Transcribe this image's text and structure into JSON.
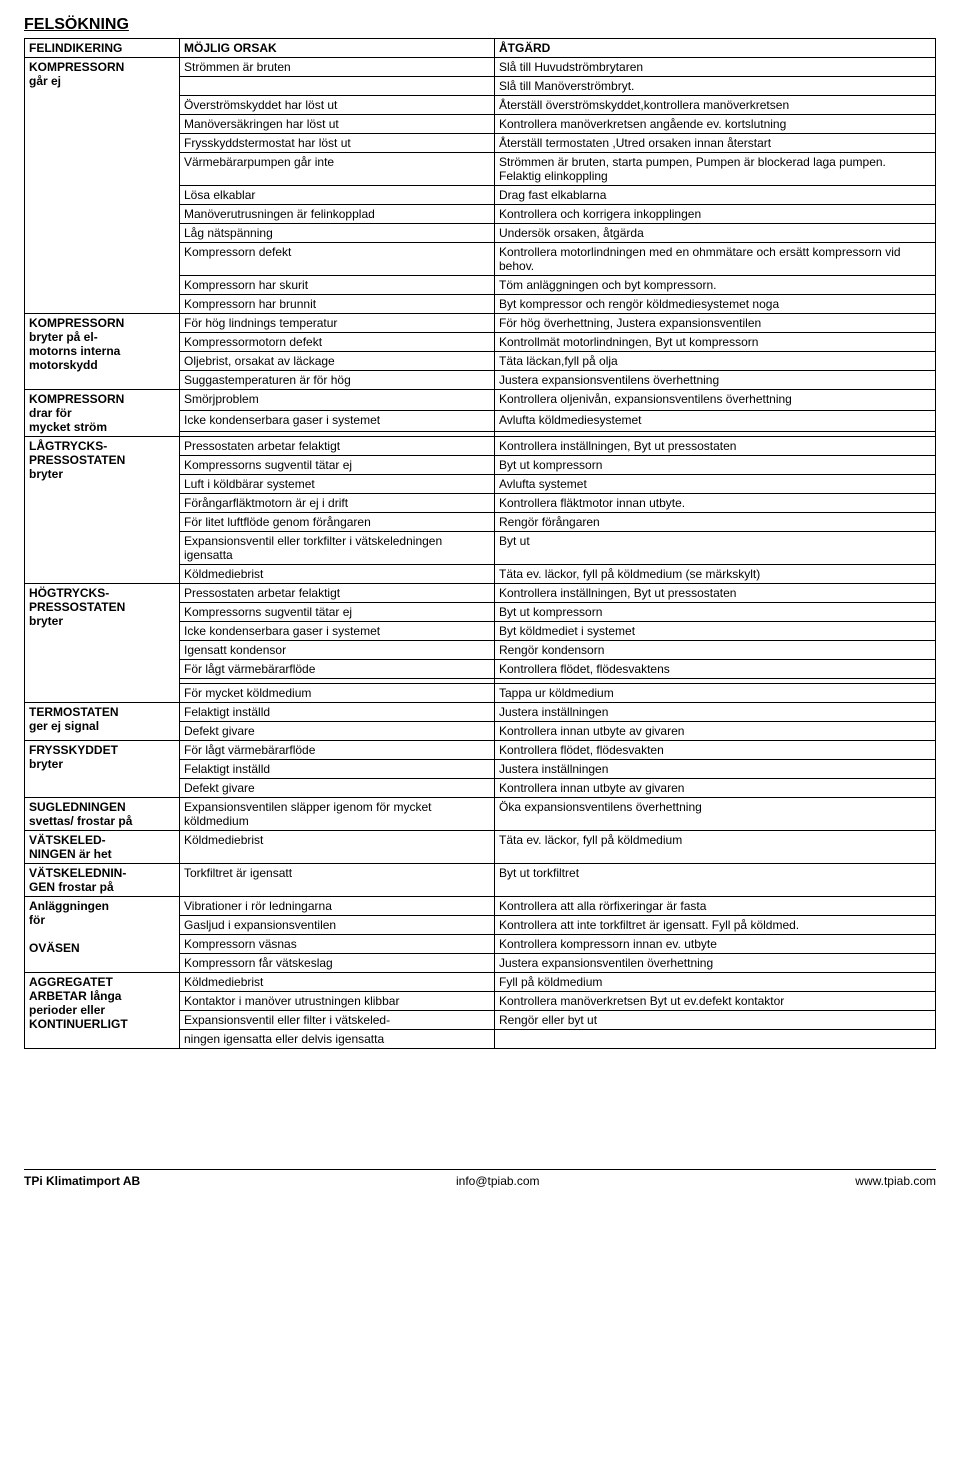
{
  "title": "FELSÖKNING",
  "header": {
    "col1": "FELINDIKERING",
    "col2": "MÖJLIG ORSAK",
    "col3": "ÅTGÄRD"
  },
  "groups": [
    {
      "label_parts": [
        "KOMPRESSORN",
        "går ej"
      ],
      "rows": [
        [
          "Strömmen är bruten",
          "Slå till Huvudströmbrytaren"
        ],
        [
          "",
          "Slå till Manöverströmbryt."
        ],
        [
          "Överströmskyddet har löst ut",
          "Återställ överströmskyddet,kontrollera manöverkretsen"
        ],
        [
          "Manöversäkringen har löst ut",
          "Kontrollera manöverkretsen angående ev. kortslutning"
        ],
        [
          "Frysskyddstermostat har löst ut",
          "Återställ termostaten ,Utred orsaken innan återstart"
        ],
        [
          "Värmebärarpumpen går inte",
          "Strömmen är bruten, starta pumpen, Pumpen är blockerad laga pumpen. Felaktig elinkoppling"
        ],
        [
          "Lösa elkablar",
          "Drag fast elkablarna"
        ],
        [
          "Manöverutrusningen är felinkopplad",
          "Kontrollera och korrigera inkopplingen"
        ],
        [
          "Låg nätspänning",
          "Undersök orsaken, åtgärda"
        ],
        [
          "Kompressorn defekt",
          "Kontrollera motorlindningen med en ohmmätare och ersätt kompressorn vid behov."
        ],
        [
          "Kompressorn har skurit",
          "Töm anläggningen och byt kompressorn."
        ],
        [
          "Kompressorn har brunnit",
          "Byt kompressor och rengör köldmediesystemet noga"
        ]
      ]
    },
    {
      "label_parts": [
        "KOMPRESSORN",
        "bryter på el-",
        "motorns interna",
        "motorskydd"
      ],
      "rows": [
        [
          "För hög lindnings temperatur",
          "För hög överhettning,  Justera expansionsventilen"
        ],
        [
          "Kompressormotorn defekt",
          "Kontrollmät motorlindningen, Byt ut kompressorn"
        ],
        [
          "Oljebrist, orsakat av läckage",
          "Täta läckan,fyll på olja"
        ],
        [
          "Suggastemperaturen är för hög",
          "Justera expansionsventilens överhettning"
        ]
      ]
    },
    {
      "label_parts": [
        "KOMPRESSORN",
        "drar för",
        "mycket ström"
      ],
      "rows": [
        [
          "Smörjproblem",
          "Kontrollera oljenivån, expansionsventilens överhettning"
        ],
        [
          "Icke kondenserbara gaser i systemet",
          "Avlufta köldmediesystemet"
        ],
        [
          "",
          ""
        ]
      ]
    },
    {
      "label_parts": [
        "LÅGTRYCKS-",
        "PRESSOSTATEN",
        "bryter"
      ],
      "rows": [
        [
          "Pressostaten arbetar felaktigt",
          "Kontrollera inställningen, Byt ut pressostaten"
        ],
        [
          "Kompressorns sugventil tätar ej",
          "Byt ut kompressorn"
        ],
        [
          "Luft i köldbärar systemet",
          "Avlufta systemet"
        ],
        [
          "Förångarfläktmotorn är ej i drift",
          "Kontrollera fläktmotor innan utbyte."
        ],
        [
          "För litet luftflöde genom förångaren",
          "Rengör förångaren"
        ],
        [
          "Expansionsventil eller torkfilter i vätskeledningen igensatta",
          "Byt ut"
        ],
        [
          "Köldmediebrist",
          "Täta ev. läckor, fyll på köldmedium (se märkskylt)"
        ]
      ]
    },
    {
      "label_parts": [
        "HÖGTRYCKS-",
        "PRESSOSTATEN",
        "bryter"
      ],
      "rows": [
        [
          "Pressostaten arbetar felaktigt",
          "Kontrollera inställningen, Byt ut pressostaten"
        ],
        [
          "Kompressorns sugventil tätar ej",
          "Byt ut kompressorn"
        ],
        [
          "Icke kondenserbara gaser i systemet",
          "Byt köldmediet i systemet"
        ],
        [
          "Igensatt kondensor",
          "Rengör kondensorn"
        ],
        [
          "För lågt värmebärarflöde",
          "Kontrollera flödet, flödesvaktens"
        ],
        [
          "",
          ""
        ],
        [
          "För mycket köldmedium",
          "Tappa ur köldmedium"
        ]
      ]
    },
    {
      "label_parts": [
        "TERMOSTATEN",
        "ger ej signal"
      ],
      "rows": [
        [
          "Felaktigt inställd",
          "Justera inställningen"
        ],
        [
          "Defekt givare",
          "Kontrollera innan utbyte av givaren"
        ]
      ]
    },
    {
      "label_parts": [
        "FRYSSKYDDET",
        "bryter"
      ],
      "rows": [
        [
          "För lågt värmebärarflöde",
          "Kontrollera flödet, flödesvakten"
        ],
        [
          "Felaktigt inställd",
          "Justera inställningen"
        ],
        [
          "Defekt givare",
          "Kontrollera innan utbyte av givaren"
        ]
      ]
    },
    {
      "label_parts": [
        "SUGLEDNINGEN",
        "svettas/ frostar på"
      ],
      "rows": [
        [
          "Expansionsventilen släpper igenom för mycket köldmedium",
          "Öka expansionsventilens överhettning"
        ]
      ]
    },
    {
      "label_parts": [
        "VÄTSKELED-",
        "NINGEN är het"
      ],
      "rows": [
        [
          "Köldmediebrist",
          "Täta ev. läckor, fyll på köldmedium"
        ]
      ]
    },
    {
      "label_parts": [
        "VÄTSKELEDNIN-",
        "GEN frostar på"
      ],
      "rows": [
        [
          "Torkfiltret är igensatt",
          "Byt ut torkfiltret"
        ]
      ]
    },
    {
      "label_parts": [
        "Anläggningen",
        "för",
        "",
        "OVÄSEN"
      ],
      "rows": [
        [
          "Vibrationer i rör ledningarna",
          "Kontrollera att alla rörfixeringar är fasta"
        ],
        [
          "Gasljud i expansionsventilen",
          "Kontrollera att inte torkfiltret är igensatt. Fyll på köldmed."
        ],
        [
          "Kompressorn väsnas",
          "Kontrollera kompressorn innan ev. utbyte"
        ],
        [
          "Kompressorn får vätskeslag",
          "Justera expansionsventilen överhettning"
        ]
      ]
    },
    {
      "label_parts": [
        "AGGREGATET",
        "ARBETAR långa",
        "perioder eller",
        "KONTINUERLIGT"
      ],
      "rows": [
        [
          "Köldmediebrist",
          "Fyll på köldmedium"
        ],
        [
          "Kontaktor i manöver utrustningen  klibbar",
          "Kontrollera manöverkretsen Byt ut ev.defekt kontaktor"
        ],
        [
          "Expansionsventil eller filter i vätskeled-",
          "Rengör eller byt ut"
        ],
        [
          "ningen igensatta eller delvis  igensatta",
          ""
        ]
      ]
    }
  ],
  "footer": {
    "left": "TPi Klimatimport AB",
    "center": "info@tpiab.com",
    "right": "www.tpiab.com"
  }
}
